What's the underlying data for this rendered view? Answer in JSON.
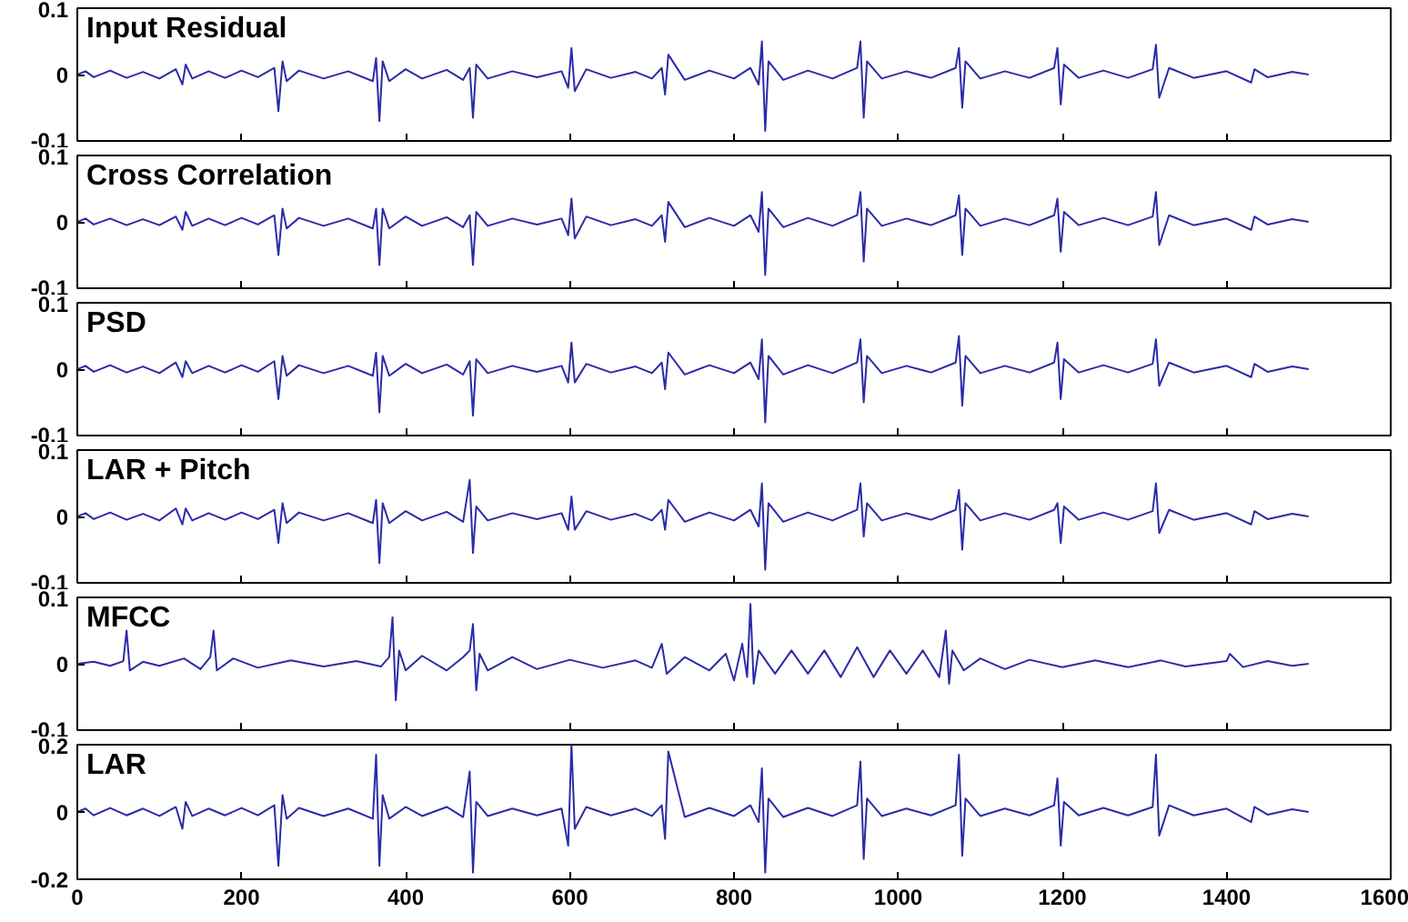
{
  "chart_data": [
    {
      "type": "line",
      "title": "Input Residual",
      "x": [
        0,
        10,
        20,
        40,
        60,
        80,
        100,
        120,
        128,
        132,
        140,
        160,
        180,
        200,
        220,
        240,
        245,
        250,
        255,
        270,
        300,
        330,
        360,
        364,
        368,
        372,
        380,
        400,
        420,
        450,
        470,
        478,
        482,
        486,
        500,
        530,
        560,
        590,
        598,
        602,
        606,
        620,
        650,
        680,
        700,
        712,
        716,
        720,
        740,
        770,
        800,
        820,
        830,
        834,
        838,
        842,
        860,
        890,
        920,
        950,
        954,
        958,
        962,
        980,
        1010,
        1040,
        1070,
        1074,
        1078,
        1082,
        1100,
        1130,
        1160,
        1190,
        1194,
        1198,
        1202,
        1220,
        1250,
        1280,
        1310,
        1314,
        1318,
        1330,
        1360,
        1400,
        1430,
        1434,
        1450,
        1480,
        1500
      ],
      "series": [
        {
          "color": "#2b2ba8",
          "values": [
            0,
            0.005,
            -0.004,
            0.006,
            -0.005,
            0.004,
            -0.006,
            0.008,
            -0.015,
            0.015,
            -0.006,
            0.005,
            -0.005,
            0.006,
            -0.004,
            0.01,
            -0.055,
            0.02,
            -0.01,
            0.006,
            -0.006,
            0.005,
            -0.01,
            0.025,
            -0.07,
            0.02,
            -0.01,
            0.008,
            -0.006,
            0.007,
            -0.008,
            0.01,
            -0.065,
            0.015,
            -0.006,
            0.005,
            -0.004,
            0.005,
            -0.02,
            0.04,
            -0.025,
            0.008,
            -0.005,
            0.004,
            -0.006,
            0.01,
            -0.03,
            0.03,
            -0.008,
            0.006,
            -0.006,
            0.01,
            -0.015,
            0.05,
            -0.085,
            0.02,
            -0.008,
            0.006,
            -0.006,
            0.01,
            0.05,
            -0.065,
            0.02,
            -0.006,
            0.005,
            -0.005,
            0.01,
            0.04,
            -0.05,
            0.02,
            -0.006,
            0.005,
            -0.005,
            0.01,
            0.04,
            -0.045,
            0.015,
            -0.005,
            0.006,
            -0.005,
            0.008,
            0.045,
            -0.035,
            0.01,
            -0.005,
            0.005,
            -0.012,
            0.008,
            -0.004,
            0.004,
            0
          ]
        }
      ],
      "xlim": [
        0,
        1600
      ],
      "xticks": [
        0,
        200,
        400,
        600,
        800,
        1000,
        1200,
        1400,
        1600
      ],
      "ylim": [
        -0.1,
        0.1
      ],
      "yticks": [
        -0.1,
        0,
        0.1
      ],
      "tick_labels": "y",
      "grid": false
    },
    {
      "type": "line",
      "title": "Cross Correlation",
      "x": [
        0,
        10,
        20,
        40,
        60,
        80,
        100,
        120,
        128,
        132,
        140,
        160,
        180,
        200,
        220,
        240,
        245,
        250,
        255,
        270,
        300,
        330,
        360,
        364,
        368,
        372,
        380,
        400,
        420,
        450,
        470,
        478,
        482,
        486,
        500,
        530,
        560,
        590,
        598,
        602,
        606,
        620,
        650,
        680,
        700,
        712,
        716,
        720,
        740,
        770,
        800,
        820,
        830,
        834,
        838,
        842,
        860,
        890,
        920,
        950,
        954,
        958,
        962,
        980,
        1010,
        1040,
        1070,
        1074,
        1078,
        1082,
        1100,
        1130,
        1160,
        1190,
        1194,
        1198,
        1202,
        1220,
        1250,
        1280,
        1310,
        1314,
        1318,
        1330,
        1360,
        1400,
        1430,
        1434,
        1450,
        1480,
        1500
      ],
      "series": [
        {
          "color": "#2b2ba8",
          "values": [
            0,
            0.005,
            -0.004,
            0.005,
            -0.005,
            0.004,
            -0.005,
            0.008,
            -0.012,
            0.015,
            -0.006,
            0.005,
            -0.005,
            0.006,
            -0.004,
            0.01,
            -0.05,
            0.02,
            -0.01,
            0.006,
            -0.006,
            0.005,
            -0.01,
            0.02,
            -0.065,
            0.02,
            -0.01,
            0.008,
            -0.006,
            0.007,
            -0.008,
            0.01,
            -0.065,
            0.015,
            -0.006,
            0.005,
            -0.004,
            0.005,
            -0.02,
            0.035,
            -0.025,
            0.008,
            -0.005,
            0.004,
            -0.006,
            0.01,
            -0.03,
            0.03,
            -0.008,
            0.006,
            -0.006,
            0.01,
            -0.015,
            0.045,
            -0.08,
            0.02,
            -0.008,
            0.006,
            -0.006,
            0.01,
            0.045,
            -0.06,
            0.02,
            -0.006,
            0.005,
            -0.005,
            0.01,
            0.04,
            -0.05,
            0.02,
            -0.006,
            0.005,
            -0.005,
            0.01,
            0.035,
            -0.045,
            0.015,
            -0.005,
            0.006,
            -0.005,
            0.008,
            0.045,
            -0.035,
            0.01,
            -0.005,
            0.005,
            -0.012,
            0.008,
            -0.004,
            0.004,
            0
          ]
        }
      ],
      "xlim": [
        0,
        1600
      ],
      "xticks": [
        0,
        200,
        400,
        600,
        800,
        1000,
        1200,
        1400,
        1600
      ],
      "ylim": [
        -0.1,
        0.1
      ],
      "yticks": [
        -0.1,
        0,
        0.1
      ],
      "tick_labels": "y",
      "grid": false
    },
    {
      "type": "line",
      "title": "PSD",
      "x": [
        0,
        10,
        20,
        40,
        60,
        80,
        100,
        120,
        128,
        132,
        140,
        160,
        180,
        200,
        220,
        240,
        245,
        250,
        255,
        270,
        300,
        330,
        360,
        364,
        368,
        372,
        380,
        400,
        420,
        450,
        470,
        478,
        482,
        486,
        500,
        530,
        560,
        590,
        598,
        602,
        606,
        620,
        650,
        680,
        700,
        712,
        716,
        720,
        740,
        770,
        800,
        820,
        830,
        834,
        838,
        842,
        860,
        890,
        920,
        950,
        954,
        958,
        962,
        980,
        1010,
        1040,
        1070,
        1074,
        1078,
        1082,
        1100,
        1130,
        1160,
        1190,
        1194,
        1198,
        1202,
        1220,
        1250,
        1280,
        1310,
        1314,
        1318,
        1330,
        1360,
        1400,
        1430,
        1434,
        1450,
        1480,
        1500
      ],
      "series": [
        {
          "color": "#2b2ba8",
          "values": [
            0,
            0.005,
            -0.004,
            0.006,
            -0.005,
            0.004,
            -0.006,
            0.01,
            -0.012,
            0.012,
            -0.006,
            0.005,
            -0.005,
            0.006,
            -0.004,
            0.012,
            -0.045,
            0.02,
            -0.01,
            0.006,
            -0.006,
            0.005,
            -0.01,
            0.025,
            -0.065,
            0.02,
            -0.01,
            0.008,
            -0.006,
            0.007,
            -0.008,
            0.012,
            -0.07,
            0.015,
            -0.006,
            0.005,
            -0.004,
            0.005,
            -0.02,
            0.04,
            -0.02,
            0.008,
            -0.005,
            0.004,
            -0.006,
            0.01,
            -0.03,
            0.025,
            -0.008,
            0.006,
            -0.006,
            0.01,
            -0.015,
            0.045,
            -0.08,
            0.02,
            -0.008,
            0.006,
            -0.006,
            0.01,
            0.045,
            -0.05,
            0.02,
            -0.006,
            0.005,
            -0.005,
            0.01,
            0.05,
            -0.055,
            0.02,
            -0.006,
            0.005,
            -0.005,
            0.01,
            0.04,
            -0.045,
            0.015,
            -0.005,
            0.006,
            -0.005,
            0.008,
            0.045,
            -0.025,
            0.01,
            -0.005,
            0.005,
            -0.012,
            0.008,
            -0.004,
            0.004,
            0
          ]
        }
      ],
      "xlim": [
        0,
        1600
      ],
      "xticks": [
        0,
        200,
        400,
        600,
        800,
        1000,
        1200,
        1400,
        1600
      ],
      "ylim": [
        -0.1,
        0.1
      ],
      "yticks": [
        -0.1,
        0,
        0.1
      ],
      "tick_labels": "y",
      "grid": false
    },
    {
      "type": "line",
      "title": "LAR + Pitch",
      "x": [
        0,
        10,
        20,
        40,
        60,
        80,
        100,
        120,
        128,
        132,
        140,
        160,
        180,
        200,
        220,
        240,
        245,
        250,
        255,
        270,
        300,
        330,
        360,
        364,
        368,
        372,
        380,
        400,
        420,
        450,
        470,
        478,
        482,
        486,
        500,
        530,
        560,
        590,
        598,
        602,
        606,
        620,
        650,
        680,
        700,
        712,
        716,
        720,
        740,
        770,
        800,
        820,
        830,
        834,
        838,
        842,
        860,
        890,
        920,
        950,
        954,
        958,
        962,
        980,
        1010,
        1040,
        1070,
        1074,
        1078,
        1082,
        1100,
        1130,
        1160,
        1190,
        1194,
        1198,
        1202,
        1220,
        1250,
        1280,
        1310,
        1314,
        1318,
        1330,
        1360,
        1400,
        1430,
        1434,
        1450,
        1480,
        1500
      ],
      "series": [
        {
          "color": "#2b2ba8",
          "values": [
            0,
            0.005,
            -0.004,
            0.006,
            -0.005,
            0.004,
            -0.006,
            0.012,
            -0.012,
            0.012,
            -0.006,
            0.005,
            -0.005,
            0.006,
            -0.004,
            0.01,
            -0.04,
            0.02,
            -0.01,
            0.006,
            -0.006,
            0.005,
            -0.01,
            0.025,
            -0.07,
            0.02,
            -0.01,
            0.008,
            -0.006,
            0.007,
            -0.008,
            0.055,
            -0.055,
            0.015,
            -0.006,
            0.005,
            -0.004,
            0.005,
            -0.02,
            0.03,
            -0.02,
            0.008,
            -0.005,
            0.004,
            -0.006,
            0.01,
            -0.02,
            0.025,
            -0.008,
            0.006,
            -0.006,
            0.01,
            -0.015,
            0.05,
            -0.08,
            0.02,
            -0.008,
            0.006,
            -0.006,
            0.01,
            0.05,
            -0.03,
            0.02,
            -0.006,
            0.005,
            -0.005,
            0.01,
            0.04,
            -0.05,
            0.02,
            -0.006,
            0.005,
            -0.005,
            0.01,
            0.02,
            -0.04,
            0.015,
            -0.005,
            0.006,
            -0.005,
            0.008,
            0.05,
            -0.025,
            0.01,
            -0.005,
            0.005,
            -0.012,
            0.008,
            -0.004,
            0.004,
            0
          ]
        }
      ],
      "xlim": [
        0,
        1600
      ],
      "xticks": [
        0,
        200,
        400,
        600,
        800,
        1000,
        1200,
        1400,
        1600
      ],
      "ylim": [
        -0.1,
        0.1
      ],
      "yticks": [
        -0.1,
        0,
        0.1
      ],
      "tick_labels": "y",
      "grid": false
    },
    {
      "type": "line",
      "title": "MFCC",
      "x": [
        0,
        20,
        40,
        56,
        60,
        64,
        80,
        100,
        130,
        150,
        162,
        166,
        170,
        190,
        220,
        260,
        300,
        340,
        370,
        380,
        384,
        388,
        392,
        400,
        420,
        450,
        470,
        478,
        482,
        486,
        490,
        500,
        530,
        560,
        600,
        640,
        680,
        700,
        712,
        718,
        740,
        770,
        790,
        800,
        810,
        816,
        820,
        824,
        830,
        850,
        870,
        890,
        910,
        930,
        950,
        970,
        990,
        1010,
        1030,
        1050,
        1058,
        1062,
        1066,
        1080,
        1100,
        1130,
        1160,
        1200,
        1240,
        1280,
        1320,
        1350,
        1400,
        1404,
        1420,
        1450,
        1480,
        1500
      ],
      "series": [
        {
          "color": "#2b2ba8",
          "values": [
            0,
            0.003,
            -0.003,
            0.004,
            0.05,
            -0.01,
            0.003,
            -0.003,
            0.008,
            -0.008,
            0.01,
            0.05,
            -0.01,
            0.008,
            -0.006,
            0.005,
            -0.004,
            0.004,
            -0.004,
            0.01,
            0.07,
            -0.055,
            0.02,
            -0.01,
            0.012,
            -0.01,
            0.01,
            0.02,
            0.06,
            -0.04,
            0.015,
            -0.01,
            0.01,
            -0.008,
            0.006,
            -0.006,
            0.005,
            -0.006,
            0.03,
            -0.015,
            0.01,
            -0.01,
            0.015,
            -0.025,
            0.03,
            -0.02,
            0.09,
            -0.03,
            0.02,
            -0.015,
            0.02,
            -0.015,
            0.02,
            -0.02,
            0.025,
            -0.02,
            0.02,
            -0.015,
            0.02,
            -0.02,
            0.05,
            -0.03,
            0.02,
            -0.01,
            0.008,
            -0.008,
            0.006,
            -0.005,
            0.005,
            -0.005,
            0.005,
            -0.004,
            0.004,
            0.015,
            -0.005,
            0.004,
            -0.003,
            0
          ]
        }
      ],
      "xlim": [
        0,
        1600
      ],
      "xticks": [
        0,
        200,
        400,
        600,
        800,
        1000,
        1200,
        1400,
        1600
      ],
      "ylim": [
        -0.1,
        0.1
      ],
      "yticks": [
        -0.1,
        0,
        0.1
      ],
      "tick_labels": "y",
      "grid": false
    },
    {
      "type": "line",
      "title": "LAR",
      "x": [
        0,
        10,
        20,
        40,
        60,
        80,
        100,
        120,
        128,
        132,
        140,
        160,
        180,
        200,
        220,
        240,
        245,
        250,
        255,
        270,
        300,
        330,
        360,
        364,
        368,
        372,
        380,
        400,
        420,
        450,
        470,
        478,
        482,
        486,
        500,
        530,
        560,
        590,
        598,
        602,
        606,
        620,
        650,
        680,
        700,
        712,
        716,
        720,
        740,
        770,
        800,
        820,
        830,
        834,
        838,
        842,
        860,
        890,
        920,
        950,
        954,
        958,
        962,
        980,
        1010,
        1040,
        1070,
        1074,
        1078,
        1082,
        1100,
        1130,
        1160,
        1190,
        1194,
        1198,
        1202,
        1220,
        1250,
        1280,
        1310,
        1314,
        1318,
        1330,
        1360,
        1400,
        1430,
        1434,
        1450,
        1480,
        1500
      ],
      "series": [
        {
          "color": "#2b2ba8",
          "values": [
            0,
            0.01,
            -0.01,
            0.012,
            -0.01,
            0.01,
            -0.012,
            0.015,
            -0.05,
            0.03,
            -0.012,
            0.01,
            -0.01,
            0.012,
            -0.01,
            0.02,
            -0.16,
            0.05,
            -0.02,
            0.012,
            -0.012,
            0.01,
            -0.02,
            0.17,
            -0.16,
            0.05,
            -0.02,
            0.015,
            -0.012,
            0.015,
            -0.015,
            0.12,
            -0.18,
            0.03,
            -0.012,
            0.01,
            -0.01,
            0.01,
            -0.1,
            0.2,
            -0.05,
            0.015,
            -0.01,
            0.01,
            -0.012,
            0.02,
            -0.08,
            0.18,
            -0.015,
            0.012,
            -0.012,
            0.02,
            -0.03,
            0.13,
            -0.18,
            0.04,
            -0.015,
            0.012,
            -0.012,
            0.02,
            0.15,
            -0.14,
            0.04,
            -0.012,
            0.01,
            -0.01,
            0.02,
            0.17,
            -0.13,
            0.04,
            -0.012,
            0.01,
            -0.01,
            0.02,
            0.1,
            -0.1,
            0.03,
            -0.01,
            0.012,
            -0.01,
            0.015,
            0.17,
            -0.07,
            0.02,
            -0.01,
            0.01,
            -0.03,
            0.015,
            -0.008,
            0.008,
            0
          ]
        }
      ],
      "xlim": [
        0,
        1600
      ],
      "xticks": [
        0,
        200,
        400,
        600,
        800,
        1000,
        1200,
        1400,
        1600
      ],
      "ylim": [
        -0.2,
        0.2
      ],
      "yticks": [
        -0.2,
        0,
        0.2
      ],
      "grid": false
    }
  ]
}
